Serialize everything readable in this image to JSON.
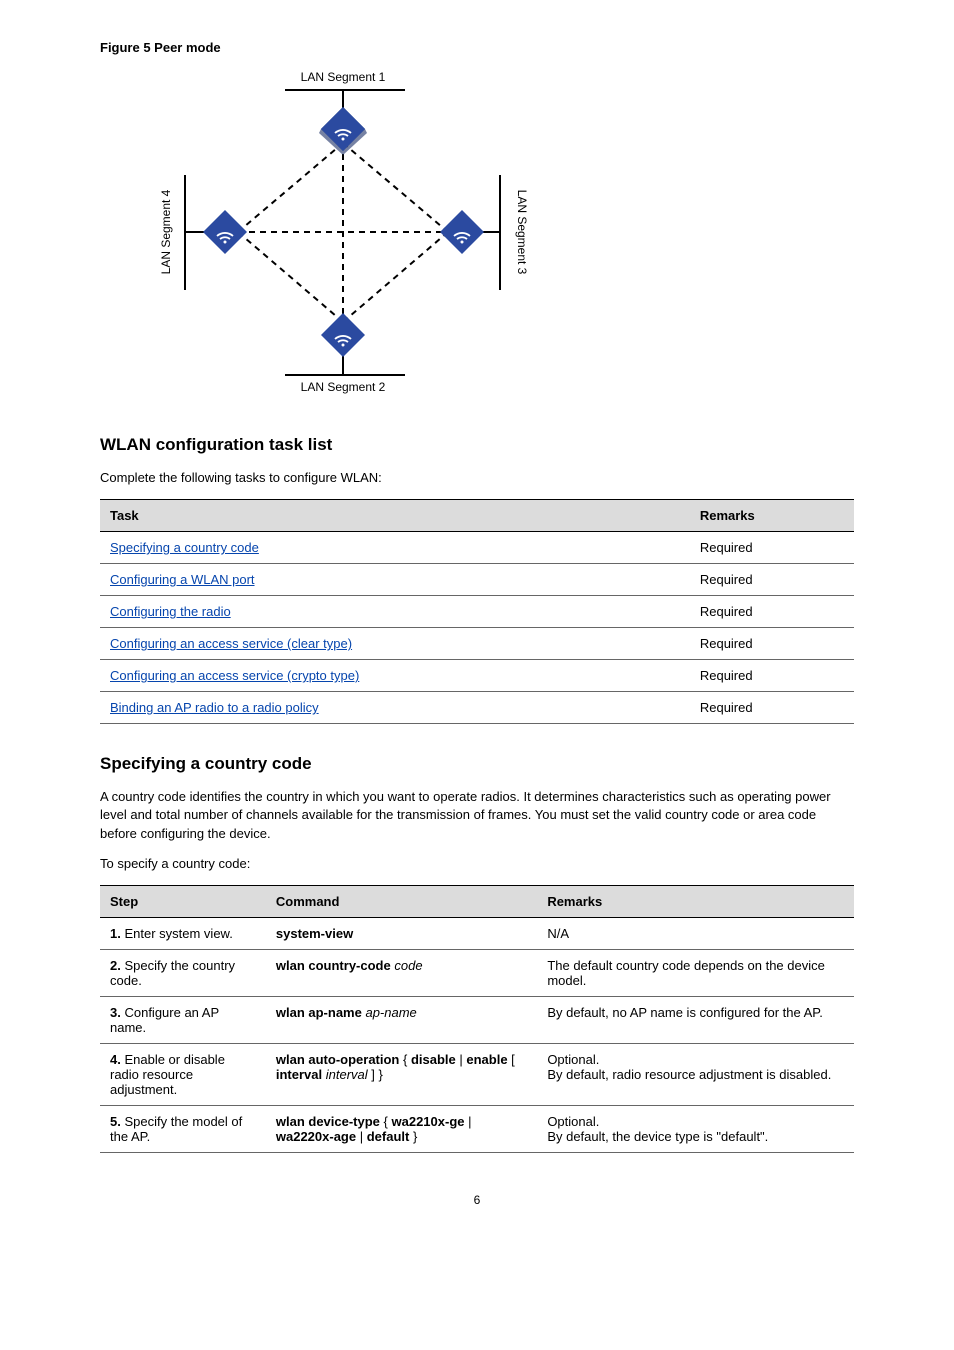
{
  "figure": {
    "title": "Figure 5 Peer mode",
    "labels": {
      "seg1": "LAN Segment 1",
      "seg2": "LAN Segment 2",
      "seg3": "LAN Segment 3",
      "seg4": "LAN Segment 4"
    },
    "node_color": "#2b4aa0",
    "node_icon_color": "#ffffff",
    "line_color": "#000000",
    "dash": "6,5",
    "background_color": "#ffffff"
  },
  "section1": {
    "title": "WLAN configuration task list",
    "intro": "Complete the following tasks to configure WLAN:",
    "table": {
      "columns": [
        "Task",
        "Remarks"
      ],
      "rows": [
        [
          {
            "text": "Specifying a country code",
            "link": true
          },
          {
            "text": "Required"
          }
        ],
        [
          {
            "text": "Configuring a WLAN port",
            "link": true
          },
          {
            "text": "Required"
          }
        ],
        [
          {
            "text": "Configuring the radio",
            "link": true
          },
          {
            "text": "Required"
          }
        ],
        [
          {
            "text": "Configuring an access service (clear type)",
            "link": true
          },
          {
            "text": "Required"
          }
        ],
        [
          {
            "text": "Configuring an access service (crypto type)",
            "link": true
          },
          {
            "text": "Required"
          }
        ],
        [
          {
            "text": "Binding an AP radio to a radio policy",
            "link": true
          },
          {
            "text": "Required"
          }
        ]
      ]
    }
  },
  "section2": {
    "title": "Specifying a country code",
    "intro": "A country code identifies the country in which you want to operate radios. It determines characteristics such as operating power level and total number of channels available for the transmission of frames. You must set the valid country code or area code before configuring the device.",
    "note": "To specify a country code:",
    "table": {
      "columns": [
        "Step",
        "Command",
        "Remarks"
      ],
      "rows": [
        [
          {
            "num": "1.",
            "text": "Enter system view."
          },
          {
            "text_b": "system-view"
          },
          {
            "text": "N/A"
          }
        ],
        [
          {
            "num": "2.",
            "text": "Specify the country code."
          },
          {
            "text_b": "wlan country-code",
            "text_i": "code"
          },
          {
            "text": "The default country code depends on the device model."
          }
        ],
        [
          {
            "num": "3.",
            "text": "Configure an AP name."
          },
          {
            "text_b": "wlan ap-name",
            "text_i": "ap-name"
          },
          {
            "text": "By default, no AP name is configured for the AP."
          }
        ],
        [
          {
            "num": "4.",
            "text": "Enable or disable radio resource adjustment."
          },
          {
            "pairs": [
              {
                "b": "wlan auto-operation ",
                "p": "{ "
              },
              {
                "b": "disable"
              },
              {
                "p": " | "
              },
              {
                "b": "enable "
              },
              {
                "p": "[ "
              },
              {
                "b": "interval "
              },
              {
                "i": "interval"
              },
              {
                "p": " ] }"
              }
            ]
          },
          {
            "text": "Optional.",
            "text2": "By default, radio resource adjustment is disabled."
          }
        ],
        [
          {
            "num": "5.",
            "text": "Specify the model of the AP."
          },
          {
            "text_b": "wlan device-type ",
            "pairs": [
              {
                "p": "{ "
              },
              {
                "b": "wa2210x-ge"
              },
              {
                "p": " | "
              },
              {
                "b": "wa2220x-age"
              },
              {
                "p": " | "
              },
              {
                "b": "default"
              },
              {
                "p": " }"
              }
            ]
          },
          {
            "text": "Optional.",
            "text2": "By default, the device type is \"default\"."
          }
        ]
      ]
    }
  },
  "page_number": "6"
}
